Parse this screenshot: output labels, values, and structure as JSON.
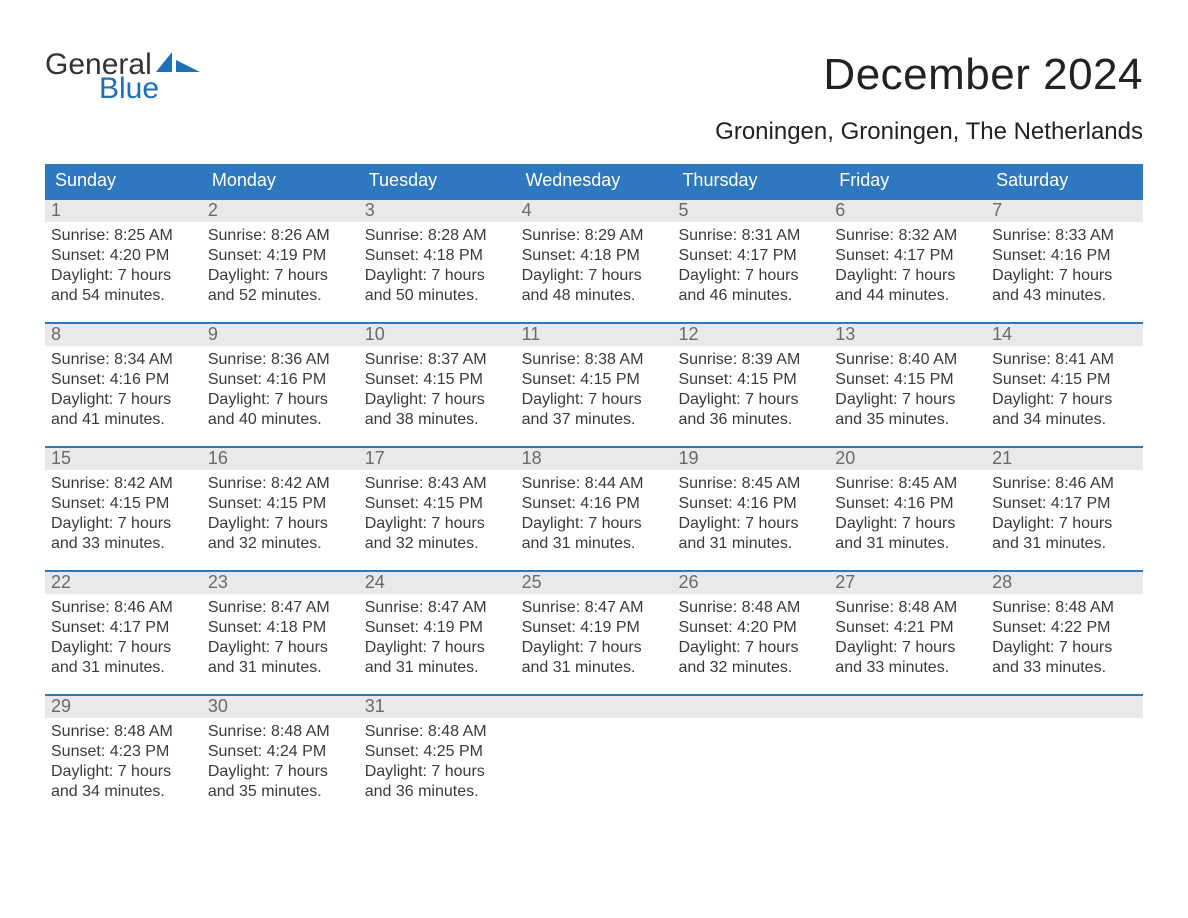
{
  "logo": {
    "text_general": "General",
    "text_blue": "Blue",
    "color_blue": "#1d6fb8",
    "color_dark": "#333333"
  },
  "header": {
    "month_title": "December 2024",
    "location": "Groningen, Groningen, The Netherlands"
  },
  "styles": {
    "header_bg": "#2d78bf",
    "header_text": "#ffffff",
    "week_border": "#2d78bf",
    "daynum_bg": "#e9e9e9",
    "daynum_color": "#6a6a6a",
    "body_text": "#3a3a3a",
    "background": "#ffffff",
    "title_fontsize": 44,
    "location_fontsize": 24,
    "dow_fontsize": 18,
    "body_fontsize": 16
  },
  "calendar": {
    "type": "table",
    "days_of_week": [
      "Sunday",
      "Monday",
      "Tuesday",
      "Wednesday",
      "Thursday",
      "Friday",
      "Saturday"
    ],
    "weeks": [
      [
        {
          "num": "1",
          "sunrise": "Sunrise: 8:25 AM",
          "sunset": "Sunset: 4:20 PM",
          "dl1": "Daylight: 7 hours",
          "dl2": "and 54 minutes."
        },
        {
          "num": "2",
          "sunrise": "Sunrise: 8:26 AM",
          "sunset": "Sunset: 4:19 PM",
          "dl1": "Daylight: 7 hours",
          "dl2": "and 52 minutes."
        },
        {
          "num": "3",
          "sunrise": "Sunrise: 8:28 AM",
          "sunset": "Sunset: 4:18 PM",
          "dl1": "Daylight: 7 hours",
          "dl2": "and 50 minutes."
        },
        {
          "num": "4",
          "sunrise": "Sunrise: 8:29 AM",
          "sunset": "Sunset: 4:18 PM",
          "dl1": "Daylight: 7 hours",
          "dl2": "and 48 minutes."
        },
        {
          "num": "5",
          "sunrise": "Sunrise: 8:31 AM",
          "sunset": "Sunset: 4:17 PM",
          "dl1": "Daylight: 7 hours",
          "dl2": "and 46 minutes."
        },
        {
          "num": "6",
          "sunrise": "Sunrise: 8:32 AM",
          "sunset": "Sunset: 4:17 PM",
          "dl1": "Daylight: 7 hours",
          "dl2": "and 44 minutes."
        },
        {
          "num": "7",
          "sunrise": "Sunrise: 8:33 AM",
          "sunset": "Sunset: 4:16 PM",
          "dl1": "Daylight: 7 hours",
          "dl2": "and 43 minutes."
        }
      ],
      [
        {
          "num": "8",
          "sunrise": "Sunrise: 8:34 AM",
          "sunset": "Sunset: 4:16 PM",
          "dl1": "Daylight: 7 hours",
          "dl2": "and 41 minutes."
        },
        {
          "num": "9",
          "sunrise": "Sunrise: 8:36 AM",
          "sunset": "Sunset: 4:16 PM",
          "dl1": "Daylight: 7 hours",
          "dl2": "and 40 minutes."
        },
        {
          "num": "10",
          "sunrise": "Sunrise: 8:37 AM",
          "sunset": "Sunset: 4:15 PM",
          "dl1": "Daylight: 7 hours",
          "dl2": "and 38 minutes."
        },
        {
          "num": "11",
          "sunrise": "Sunrise: 8:38 AM",
          "sunset": "Sunset: 4:15 PM",
          "dl1": "Daylight: 7 hours",
          "dl2": "and 37 minutes."
        },
        {
          "num": "12",
          "sunrise": "Sunrise: 8:39 AM",
          "sunset": "Sunset: 4:15 PM",
          "dl1": "Daylight: 7 hours",
          "dl2": "and 36 minutes."
        },
        {
          "num": "13",
          "sunrise": "Sunrise: 8:40 AM",
          "sunset": "Sunset: 4:15 PM",
          "dl1": "Daylight: 7 hours",
          "dl2": "and 35 minutes."
        },
        {
          "num": "14",
          "sunrise": "Sunrise: 8:41 AM",
          "sunset": "Sunset: 4:15 PM",
          "dl1": "Daylight: 7 hours",
          "dl2": "and 34 minutes."
        }
      ],
      [
        {
          "num": "15",
          "sunrise": "Sunrise: 8:42 AM",
          "sunset": "Sunset: 4:15 PM",
          "dl1": "Daylight: 7 hours",
          "dl2": "and 33 minutes."
        },
        {
          "num": "16",
          "sunrise": "Sunrise: 8:42 AM",
          "sunset": "Sunset: 4:15 PM",
          "dl1": "Daylight: 7 hours",
          "dl2": "and 32 minutes."
        },
        {
          "num": "17",
          "sunrise": "Sunrise: 8:43 AM",
          "sunset": "Sunset: 4:15 PM",
          "dl1": "Daylight: 7 hours",
          "dl2": "and 32 minutes."
        },
        {
          "num": "18",
          "sunrise": "Sunrise: 8:44 AM",
          "sunset": "Sunset: 4:16 PM",
          "dl1": "Daylight: 7 hours",
          "dl2": "and 31 minutes."
        },
        {
          "num": "19",
          "sunrise": "Sunrise: 8:45 AM",
          "sunset": "Sunset: 4:16 PM",
          "dl1": "Daylight: 7 hours",
          "dl2": "and 31 minutes."
        },
        {
          "num": "20",
          "sunrise": "Sunrise: 8:45 AM",
          "sunset": "Sunset: 4:16 PM",
          "dl1": "Daylight: 7 hours",
          "dl2": "and 31 minutes."
        },
        {
          "num": "21",
          "sunrise": "Sunrise: 8:46 AM",
          "sunset": "Sunset: 4:17 PM",
          "dl1": "Daylight: 7 hours",
          "dl2": "and 31 minutes."
        }
      ],
      [
        {
          "num": "22",
          "sunrise": "Sunrise: 8:46 AM",
          "sunset": "Sunset: 4:17 PM",
          "dl1": "Daylight: 7 hours",
          "dl2": "and 31 minutes."
        },
        {
          "num": "23",
          "sunrise": "Sunrise: 8:47 AM",
          "sunset": "Sunset: 4:18 PM",
          "dl1": "Daylight: 7 hours",
          "dl2": "and 31 minutes."
        },
        {
          "num": "24",
          "sunrise": "Sunrise: 8:47 AM",
          "sunset": "Sunset: 4:19 PM",
          "dl1": "Daylight: 7 hours",
          "dl2": "and 31 minutes."
        },
        {
          "num": "25",
          "sunrise": "Sunrise: 8:47 AM",
          "sunset": "Sunset: 4:19 PM",
          "dl1": "Daylight: 7 hours",
          "dl2": "and 31 minutes."
        },
        {
          "num": "26",
          "sunrise": "Sunrise: 8:48 AM",
          "sunset": "Sunset: 4:20 PM",
          "dl1": "Daylight: 7 hours",
          "dl2": "and 32 minutes."
        },
        {
          "num": "27",
          "sunrise": "Sunrise: 8:48 AM",
          "sunset": "Sunset: 4:21 PM",
          "dl1": "Daylight: 7 hours",
          "dl2": "and 33 minutes."
        },
        {
          "num": "28",
          "sunrise": "Sunrise: 8:48 AM",
          "sunset": "Sunset: 4:22 PM",
          "dl1": "Daylight: 7 hours",
          "dl2": "and 33 minutes."
        }
      ],
      [
        {
          "num": "29",
          "sunrise": "Sunrise: 8:48 AM",
          "sunset": "Sunset: 4:23 PM",
          "dl1": "Daylight: 7 hours",
          "dl2": "and 34 minutes."
        },
        {
          "num": "30",
          "sunrise": "Sunrise: 8:48 AM",
          "sunset": "Sunset: 4:24 PM",
          "dl1": "Daylight: 7 hours",
          "dl2": "and 35 minutes."
        },
        {
          "num": "31",
          "sunrise": "Sunrise: 8:48 AM",
          "sunset": "Sunset: 4:25 PM",
          "dl1": "Daylight: 7 hours",
          "dl2": "and 36 minutes."
        },
        {
          "num": "",
          "sunrise": "",
          "sunset": "",
          "dl1": "",
          "dl2": ""
        },
        {
          "num": "",
          "sunrise": "",
          "sunset": "",
          "dl1": "",
          "dl2": ""
        },
        {
          "num": "",
          "sunrise": "",
          "sunset": "",
          "dl1": "",
          "dl2": ""
        },
        {
          "num": "",
          "sunrise": "",
          "sunset": "",
          "dl1": "",
          "dl2": ""
        }
      ]
    ]
  }
}
